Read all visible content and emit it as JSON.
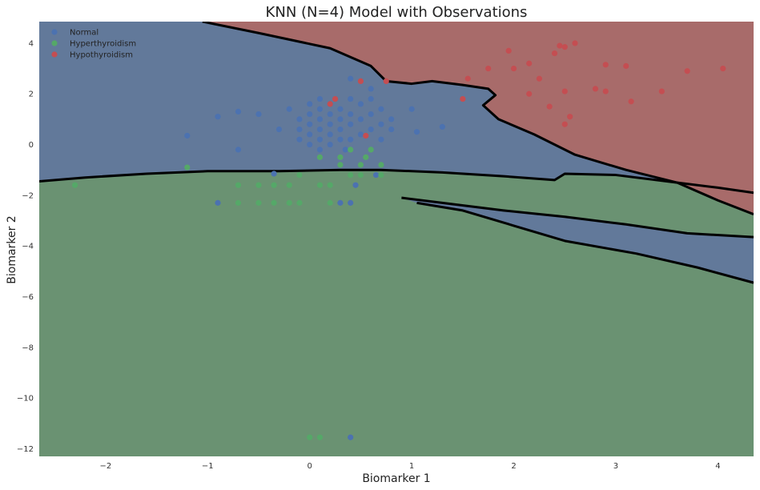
{
  "chart_data": {
    "type": "scatter",
    "title": "KNN (N=4) Model with Observations",
    "xlabel": "Biomarker 1",
    "ylabel": "Biomarker 2",
    "xlim": [
      -2.65,
      4.35
    ],
    "ylim": [
      -12.3,
      4.85
    ],
    "xticks": [
      -2,
      -1,
      0,
      1,
      2,
      3,
      4
    ],
    "yticks": [
      4,
      2,
      0,
      -2,
      -4,
      -6,
      -8,
      -10,
      -12
    ],
    "grid": false,
    "legend_position": "top-left",
    "background_regions": [
      {
        "class": "Hypothyroidism",
        "color": "#a86b6a"
      },
      {
        "class": "Normal",
        "color": "#62799a"
      },
      {
        "class": "Hyperthyroidism",
        "color": "#6a9272"
      }
    ],
    "decision_boundaries": [
      {
        "between": [
          "Normal",
          "Hypothyroidism"
        ],
        "points": [
          [
            -1.05,
            4.85
          ],
          [
            -0.5,
            4.4
          ],
          [
            0.2,
            3.8
          ],
          [
            0.6,
            3.1
          ],
          [
            0.75,
            2.5
          ],
          [
            1.0,
            2.4
          ],
          [
            1.2,
            2.5
          ],
          [
            1.5,
            2.35
          ],
          [
            1.75,
            2.2
          ],
          [
            1.82,
            1.95
          ],
          [
            1.7,
            1.55
          ],
          [
            1.85,
            1.0
          ],
          [
            2.2,
            0.4
          ],
          [
            2.6,
            -0.4
          ],
          [
            3.1,
            -1.0
          ],
          [
            3.6,
            -1.5
          ],
          [
            4.0,
            -2.2
          ],
          [
            4.35,
            -2.75
          ]
        ]
      },
      {
        "between": [
          "Normal",
          "Hyperthyroidism"
        ],
        "points": [
          [
            -2.65,
            -1.45
          ],
          [
            -2.2,
            -1.3
          ],
          [
            -1.6,
            -1.15
          ],
          [
            -1.0,
            -1.05
          ],
          [
            -0.3,
            -1.05
          ],
          [
            0.3,
            -1.0
          ],
          [
            0.7,
            -1.0
          ],
          [
            1.3,
            -1.1
          ],
          [
            1.9,
            -1.25
          ],
          [
            2.4,
            -1.4
          ],
          [
            2.5,
            -1.15
          ],
          [
            3.0,
            -1.2
          ],
          [
            3.5,
            -1.45
          ],
          [
            4.0,
            -1.7
          ],
          [
            4.35,
            -1.9
          ]
        ]
      },
      {
        "between": [
          "Hyperthyroidism",
          "Normal"
        ],
        "points": [
          [
            0.9,
            -2.1
          ],
          [
            1.3,
            -2.3
          ],
          [
            1.9,
            -2.6
          ],
          [
            2.5,
            -2.85
          ],
          [
            3.1,
            -3.15
          ],
          [
            3.7,
            -3.5
          ],
          [
            4.35,
            -3.65
          ]
        ]
      },
      {
        "between": [
          "Normal",
          "Hyperthyroidism"
        ],
        "points": [
          [
            1.05,
            -2.3
          ],
          [
            1.5,
            -2.6
          ],
          [
            2.0,
            -3.2
          ],
          [
            2.5,
            -3.8
          ],
          [
            3.2,
            -4.3
          ],
          [
            3.8,
            -4.85
          ],
          [
            4.35,
            -5.45
          ]
        ]
      }
    ],
    "series": [
      {
        "name": "Normal",
        "color": "#4c72b0",
        "points": [
          [
            -1.2,
            0.35
          ],
          [
            -0.9,
            1.1
          ],
          [
            -0.7,
            1.3
          ],
          [
            -0.5,
            1.2
          ],
          [
            -0.3,
            0.6
          ],
          [
            -0.7,
            -0.2
          ],
          [
            -0.35,
            -1.15
          ],
          [
            -0.9,
            -2.3
          ],
          [
            -0.2,
            1.4
          ],
          [
            -0.1,
            1.0
          ],
          [
            -0.1,
            0.6
          ],
          [
            -0.1,
            0.2
          ],
          [
            0.0,
            1.6
          ],
          [
            0.0,
            1.2
          ],
          [
            0.0,
            0.8
          ],
          [
            0.0,
            0.4
          ],
          [
            0.0,
            0.0
          ],
          [
            0.1,
            1.8
          ],
          [
            0.1,
            1.4
          ],
          [
            0.1,
            1.0
          ],
          [
            0.1,
            0.6
          ],
          [
            0.1,
            0.2
          ],
          [
            0.1,
            -0.2
          ],
          [
            0.2,
            1.6
          ],
          [
            0.2,
            1.2
          ],
          [
            0.2,
            0.8
          ],
          [
            0.2,
            0.4
          ],
          [
            0.2,
            0.0
          ],
          [
            0.3,
            1.4
          ],
          [
            0.3,
            1.0
          ],
          [
            0.3,
            0.6
          ],
          [
            0.3,
            0.2
          ],
          [
            0.35,
            -0.2
          ],
          [
            0.4,
            1.8
          ],
          [
            0.4,
            1.2
          ],
          [
            0.4,
            0.8
          ],
          [
            0.4,
            0.2
          ],
          [
            0.5,
            1.6
          ],
          [
            0.5,
            1.0
          ],
          [
            0.5,
            0.4
          ],
          [
            0.6,
            1.8
          ],
          [
            0.6,
            1.2
          ],
          [
            0.6,
            0.6
          ],
          [
            0.7,
            1.4
          ],
          [
            0.7,
            0.8
          ],
          [
            0.7,
            0.2
          ],
          [
            0.8,
            1.0
          ],
          [
            0.8,
            0.6
          ],
          [
            0.4,
            2.6
          ],
          [
            0.6,
            2.2
          ],
          [
            1.0,
            1.4
          ],
          [
            1.05,
            0.5
          ],
          [
            1.3,
            0.7
          ],
          [
            0.45,
            -1.6
          ],
          [
            0.65,
            -1.2
          ],
          [
            0.3,
            -2.3
          ],
          [
            0.4,
            -2.3
          ],
          [
            0.4,
            -11.55
          ]
        ]
      },
      {
        "name": "Hyperthyroidism",
        "color": "#55a868",
        "points": [
          [
            -2.3,
            -1.6
          ],
          [
            -1.2,
            -0.9
          ],
          [
            -0.7,
            -1.6
          ],
          [
            -0.7,
            -2.3
          ],
          [
            -0.5,
            -1.6
          ],
          [
            -0.5,
            -2.3
          ],
          [
            -0.35,
            -1.6
          ],
          [
            -0.35,
            -2.3
          ],
          [
            -0.2,
            -1.6
          ],
          [
            -0.2,
            -2.3
          ],
          [
            -0.1,
            -1.2
          ],
          [
            -0.1,
            -2.3
          ],
          [
            0.1,
            -0.5
          ],
          [
            0.1,
            -1.6
          ],
          [
            0.2,
            -1.6
          ],
          [
            0.2,
            -2.3
          ],
          [
            0.3,
            -0.5
          ],
          [
            0.3,
            -0.8
          ],
          [
            0.4,
            -0.2
          ],
          [
            0.4,
            -1.2
          ],
          [
            0.5,
            -0.8
          ],
          [
            0.5,
            -1.2
          ],
          [
            0.55,
            -0.5
          ],
          [
            0.6,
            -0.2
          ],
          [
            0.7,
            -0.8
          ],
          [
            0.7,
            -1.2
          ],
          [
            0.0,
            -11.55
          ],
          [
            0.1,
            -11.55
          ]
        ]
      },
      {
        "name": "Hypothyroidism",
        "color": "#c44e52",
        "points": [
          [
            0.2,
            1.6
          ],
          [
            0.25,
            1.8
          ],
          [
            0.5,
            2.5
          ],
          [
            0.55,
            0.35
          ],
          [
            0.75,
            2.5
          ],
          [
            1.5,
            1.8
          ],
          [
            1.55,
            2.6
          ],
          [
            1.75,
            3.0
          ],
          [
            1.95,
            3.7
          ],
          [
            2.0,
            3.0
          ],
          [
            2.15,
            3.2
          ],
          [
            2.15,
            2.0
          ],
          [
            2.25,
            2.6
          ],
          [
            2.35,
            1.5
          ],
          [
            2.4,
            3.6
          ],
          [
            2.45,
            3.9
          ],
          [
            2.5,
            3.85
          ],
          [
            2.5,
            2.1
          ],
          [
            2.5,
            0.8
          ],
          [
            2.55,
            1.1
          ],
          [
            2.6,
            4.0
          ],
          [
            2.8,
            2.2
          ],
          [
            2.9,
            3.15
          ],
          [
            2.9,
            2.1
          ],
          [
            3.1,
            3.1
          ],
          [
            3.15,
            1.7
          ],
          [
            3.45,
            2.1
          ],
          [
            3.7,
            2.9
          ],
          [
            4.05,
            3.0
          ]
        ]
      }
    ]
  }
}
